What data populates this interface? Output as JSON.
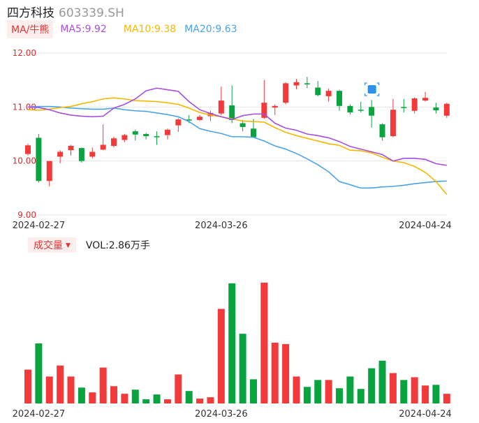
{
  "header": {
    "name": "四方科技",
    "code": "603339.SH"
  },
  "ma_legend": {
    "tag": "MA/牛熊",
    "items": [
      {
        "label": "MA5:9.92",
        "color": "#a54ee3"
      },
      {
        "label": "MA10:9.38",
        "color": "#f5b800"
      },
      {
        "label": "MA20:9.63",
        "color": "#4aa3e8"
      }
    ]
  },
  "volume_legend": {
    "tag": "成交量",
    "text": "VOL:2.86万手"
  },
  "colors": {
    "up": "#f23a3a",
    "down": "#09a33f"
  },
  "chart_data": [
    {
      "type": "candlestick",
      "ylim": [
        9.0,
        12.0
      ],
      "y_ticks": [
        "12.00",
        "11.00",
        "10.00",
        "9.00"
      ],
      "x_tick_labels": [
        {
          "label": "2024-02-27",
          "index": 1
        },
        {
          "label": "2024-03-26",
          "index": 18
        },
        {
          "label": "2024-04-24",
          "index": 37
        }
      ],
      "candles": [
        {
          "o": 10.13,
          "c": 10.29,
          "h": 10.32,
          "l": 10.1
        },
        {
          "o": 10.43,
          "c": 9.63,
          "h": 10.5,
          "l": 9.6
        },
        {
          "o": 9.63,
          "c": 10.0,
          "h": 10.0,
          "l": 9.53
        },
        {
          "o": 10.08,
          "c": 10.17,
          "h": 10.2,
          "l": 9.96
        },
        {
          "o": 10.2,
          "c": 10.28,
          "h": 10.3,
          "l": 10.1
        },
        {
          "o": 10.24,
          "c": 10.0,
          "h": 10.25,
          "l": 9.97
        },
        {
          "o": 10.08,
          "c": 10.17,
          "h": 10.25,
          "l": 10.05
        },
        {
          "o": 10.21,
          "c": 10.3,
          "h": 10.68,
          "l": 10.2
        },
        {
          "o": 10.28,
          "c": 10.42,
          "h": 10.45,
          "l": 10.25
        },
        {
          "o": 10.39,
          "c": 10.48,
          "h": 10.5,
          "l": 10.35
        },
        {
          "o": 10.55,
          "c": 10.49,
          "h": 10.58,
          "l": 10.38
        },
        {
          "o": 10.5,
          "c": 10.46,
          "h": 10.52,
          "l": 10.4
        },
        {
          "o": 10.46,
          "c": 10.45,
          "h": 10.55,
          "l": 10.3
        },
        {
          "o": 10.48,
          "c": 10.58,
          "h": 10.6,
          "l": 10.4
        },
        {
          "o": 10.66,
          "c": 10.77,
          "h": 10.79,
          "l": 10.54
        },
        {
          "o": 10.77,
          "c": 10.76,
          "h": 10.85,
          "l": 10.7
        },
        {
          "o": 10.76,
          "c": 10.82,
          "h": 10.85,
          "l": 10.74
        },
        {
          "o": 10.83,
          "c": 10.89,
          "h": 10.93,
          "l": 10.74
        },
        {
          "o": 10.88,
          "c": 11.12,
          "h": 11.38,
          "l": 10.85
        },
        {
          "o": 11.03,
          "c": 10.76,
          "h": 11.4,
          "l": 10.7
        },
        {
          "o": 10.7,
          "c": 10.63,
          "h": 10.76,
          "l": 10.55
        },
        {
          "o": 10.6,
          "c": 10.44,
          "h": 10.78,
          "l": 10.44
        },
        {
          "o": 10.8,
          "c": 11.08,
          "h": 11.5,
          "l": 10.78
        },
        {
          "o": 10.99,
          "c": 11.02,
          "h": 11.05,
          "l": 10.85
        },
        {
          "o": 11.08,
          "c": 11.44,
          "h": 11.46,
          "l": 11.05
        },
        {
          "o": 11.4,
          "c": 11.46,
          "h": 11.52,
          "l": 11.33
        },
        {
          "o": 11.44,
          "c": 11.42,
          "h": 11.56,
          "l": 11.35
        },
        {
          "o": 11.36,
          "c": 11.22,
          "h": 11.48,
          "l": 11.2
        },
        {
          "o": 11.2,
          "c": 11.3,
          "h": 11.34,
          "l": 11.1
        },
        {
          "o": 11.3,
          "c": 11.02,
          "h": 11.32,
          "l": 10.93
        },
        {
          "o": 11.02,
          "c": 10.9,
          "h": 11.05,
          "l": 10.86
        },
        {
          "o": 10.95,
          "c": 10.94,
          "h": 11.1,
          "l": 10.9
        },
        {
          "o": 11.0,
          "c": 10.84,
          "h": 11.13,
          "l": 10.62
        },
        {
          "o": 10.68,
          "c": 10.44,
          "h": 10.7,
          "l": 10.38
        },
        {
          "o": 10.46,
          "c": 10.95,
          "h": 11.15,
          "l": 10.44
        },
        {
          "o": 11.0,
          "c": 10.99,
          "h": 11.15,
          "l": 10.9
        },
        {
          "o": 10.93,
          "c": 11.16,
          "h": 11.18,
          "l": 10.88
        },
        {
          "o": 11.12,
          "c": 11.17,
          "h": 11.28,
          "l": 11.1
        },
        {
          "o": 10.99,
          "c": 10.94,
          "h": 11.08,
          "l": 10.88
        },
        {
          "o": 10.84,
          "c": 11.06,
          "h": 11.08,
          "l": 10.8
        }
      ],
      "ma5": [
        11.0,
        10.99,
        10.95,
        10.89,
        10.85,
        10.83,
        10.82,
        10.83,
        10.98,
        11.05,
        11.15,
        11.3,
        11.35,
        11.32,
        11.29,
        11.1,
        10.95,
        10.88,
        10.82,
        10.77,
        10.84,
        10.87,
        10.87,
        10.7,
        10.61,
        10.57,
        10.5,
        10.47,
        10.43,
        10.36,
        10.27,
        10.22,
        10.17,
        10.12,
        10.0,
        10.05,
        10.05,
        10.03,
        9.95,
        9.92
      ],
      "ma10": [
        10.95,
        10.94,
        10.96,
        10.99,
        11.01,
        11.06,
        11.1,
        11.15,
        11.17,
        11.15,
        11.12,
        11.11,
        11.1,
        11.08,
        11.05,
        10.98,
        10.9,
        10.85,
        10.82,
        10.78,
        10.74,
        10.73,
        10.72,
        10.62,
        10.53,
        10.47,
        10.42,
        10.37,
        10.32,
        10.29,
        10.2,
        10.19,
        10.15,
        10.07,
        10.0,
        9.97,
        9.9,
        9.79,
        9.62,
        9.38
      ],
      "ma20": [
        11.0,
        11.01,
        11.01,
        11.0,
        10.98,
        10.97,
        10.96,
        10.96,
        10.98,
        10.95,
        10.93,
        10.92,
        10.89,
        10.86,
        10.82,
        10.73,
        10.6,
        10.55,
        10.51,
        10.45,
        10.45,
        10.44,
        10.37,
        10.28,
        10.22,
        10.14,
        10.04,
        9.93,
        9.8,
        9.62,
        9.56,
        9.5,
        9.5,
        9.52,
        9.53,
        9.55,
        9.58,
        9.6,
        9.62,
        9.63
      ]
    },
    {
      "type": "bar",
      "title": "成交量",
      "x_tick_labels": [
        {
          "label": "2024-02-27",
          "index": 1
        },
        {
          "label": "2024-03-26",
          "index": 18
        },
        {
          "label": "2024-04-24",
          "index": 37
        }
      ],
      "values": [
        49,
        87,
        39,
        55,
        39,
        23,
        16,
        52,
        25,
        14,
        20,
        6,
        13,
        6,
        42,
        18,
        7,
        9,
        137,
        174,
        101,
        35,
        175,
        88,
        86,
        39,
        24,
        34,
        34,
        22,
        39,
        21,
        51,
        62,
        44,
        34,
        38,
        26,
        27,
        14
      ],
      "ylim": [
        0,
        180
      ]
    }
  ]
}
